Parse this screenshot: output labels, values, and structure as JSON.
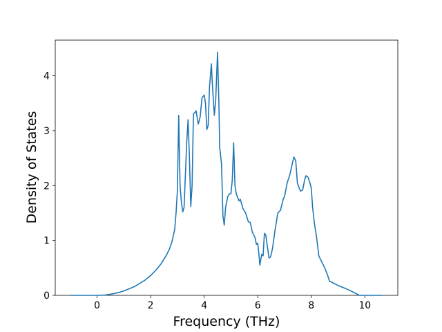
{
  "chart_data": {
    "type": "line",
    "xlabel": "Frequency (THz)",
    "ylabel": "Density of States",
    "color": "#1f77b4",
    "x": [
      -0.98,
      -0.5,
      0,
      0.3,
      0.5,
      0.8,
      1.0,
      1.2,
      1.4,
      1.6,
      1.8,
      2.0,
      2.2,
      2.4,
      2.6,
      2.7,
      2.8,
      2.9,
      2.95,
      3.0,
      3.05,
      3.1,
      3.15,
      3.2,
      3.25,
      3.35,
      3.4,
      3.45,
      3.5,
      3.55,
      3.6,
      3.7,
      3.78,
      3.85,
      3.92,
      4.0,
      4.05,
      4.1,
      4.15,
      4.2,
      4.27,
      4.3,
      4.38,
      4.43,
      4.5,
      4.55,
      4.58,
      4.65,
      4.7,
      4.75,
      4.8,
      4.88,
      4.95,
      5.0,
      5.05,
      5.1,
      5.15,
      5.2,
      5.3,
      5.35,
      5.45,
      5.55,
      5.65,
      5.72,
      5.8,
      5.9,
      5.95,
      6.0,
      6.05,
      6.08,
      6.15,
      6.2,
      6.25,
      6.3,
      6.35,
      6.42,
      6.48,
      6.55,
      6.65,
      6.75,
      6.85,
      6.95,
      7.0,
      7.1,
      7.2,
      7.3,
      7.35,
      7.42,
      7.48,
      7.55,
      7.6,
      7.68,
      7.75,
      7.8,
      7.88,
      7.95,
      8.0,
      8.05,
      8.12,
      8.2,
      8.28,
      8.35,
      8.5,
      8.6,
      8.68,
      8.8,
      9.0,
      9.2,
      9.4,
      9.6,
      9.8,
      10.0,
      10.65
    ],
    "values": [
      0,
      0,
      0,
      0.005,
      0.02,
      0.05,
      0.08,
      0.12,
      0.16,
      0.22,
      0.28,
      0.36,
      0.46,
      0.58,
      0.74,
      0.84,
      0.98,
      1.2,
      1.5,
      1.9,
      3.28,
      2.0,
      1.7,
      1.52,
      1.6,
      2.8,
      3.2,
      2.5,
      1.62,
      2.0,
      3.3,
      3.36,
      3.12,
      3.25,
      3.6,
      3.65,
      3.5,
      3.02,
      3.1,
      3.8,
      4.22,
      3.9,
      3.28,
      3.55,
      4.43,
      3.5,
      2.7,
      2.38,
      1.45,
      1.28,
      1.6,
      1.8,
      1.85,
      1.85,
      2.1,
      2.78,
      2.0,
      1.85,
      1.72,
      1.75,
      1.58,
      1.5,
      1.34,
      1.33,
      1.15,
      1.05,
      0.93,
      0.95,
      0.72,
      0.55,
      0.75,
      0.72,
      1.13,
      1.1,
      0.93,
      0.68,
      0.7,
      0.85,
      1.2,
      1.5,
      1.55,
      1.75,
      1.8,
      2.05,
      2.2,
      2.42,
      2.52,
      2.45,
      2.05,
      1.95,
      1.9,
      1.92,
      2.1,
      2.18,
      2.15,
      2.05,
      1.95,
      1.6,
      1.3,
      1.05,
      0.72,
      0.65,
      0.5,
      0.38,
      0.26,
      0.23,
      0.18,
      0.14,
      0.1,
      0.05,
      0,
      0,
      0
    ],
    "xlim": [
      -1.56,
      11.23
    ],
    "xticks": [
      0,
      2,
      4,
      6,
      8,
      10
    ],
    "ylim": [
      0,
      4.65
    ],
    "yticks": [
      0,
      1,
      2,
      3,
      4
    ]
  }
}
